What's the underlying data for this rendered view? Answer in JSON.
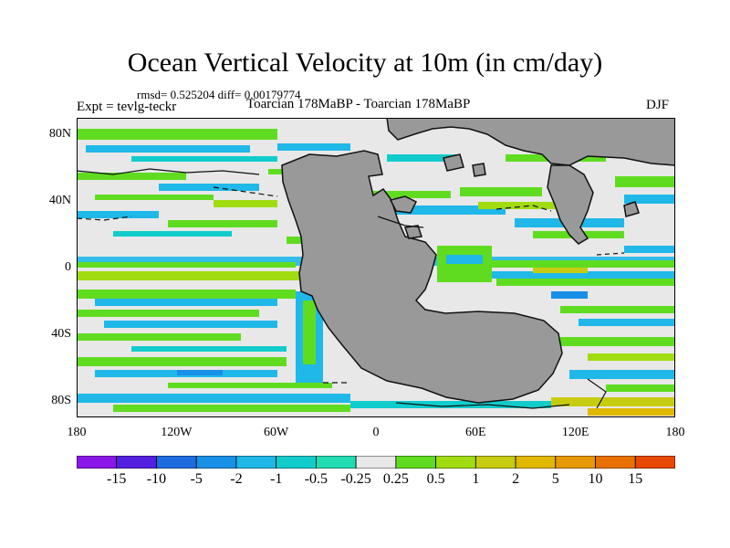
{
  "title": "Ocean Vertical Velocity at 10m (in cm/day)",
  "stats_text": "rmsd= 0.525204 diff= 0.00179774",
  "experiment": "Expt = tevlg-teckr",
  "comparison": "Toarcian 178MaBP - Toarcian 178MaBP",
  "season": "DJF",
  "lat_ticks": [
    {
      "label": "80N",
      "value": 80
    },
    {
      "label": "40N",
      "value": 40
    },
    {
      "label": "0",
      "value": 0
    },
    {
      "label": "40S",
      "value": -40
    },
    {
      "label": "80S",
      "value": -80
    }
  ],
  "lon_ticks": [
    {
      "label": "180",
      "value": -180
    },
    {
      "label": "120W",
      "value": -120
    },
    {
      "label": "60W",
      "value": -60
    },
    {
      "label": "0",
      "value": 0
    },
    {
      "label": "60E",
      "value": 60
    },
    {
      "label": "120E",
      "value": 120
    },
    {
      "label": "180",
      "value": 180
    }
  ],
  "colorbar": {
    "colors": [
      "#8b16e8",
      "#5320e0",
      "#1e6ce0",
      "#1990e8",
      "#1fb8e8",
      "#12cccc",
      "#20dcb0",
      "#e8e8e8",
      "#60dc20",
      "#a0dc10",
      "#c8cc10",
      "#e0b800",
      "#e89800",
      "#e87000",
      "#e84800"
    ],
    "labels": [
      "-15",
      "-10",
      "-5",
      "-2",
      "-1",
      "-0.5",
      "-0.25",
      "0.25",
      "0.5",
      "1",
      "2",
      "5",
      "10",
      "15"
    ]
  },
  "colors": {
    "land": "#999999",
    "ocean_background": "#e8e8e8"
  }
}
